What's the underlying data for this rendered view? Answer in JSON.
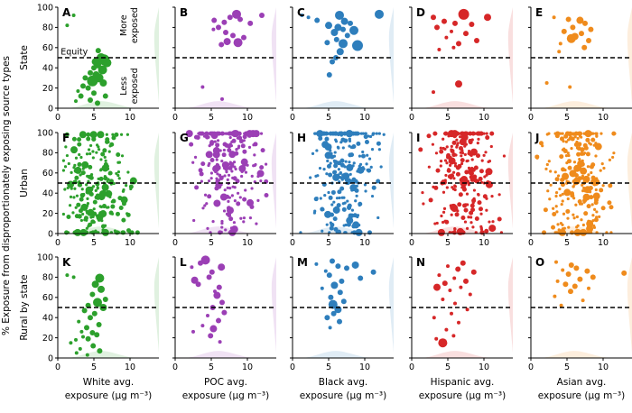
{
  "chart_data": {
    "type": "scatter",
    "ylabel": "% Exposure from disproportionately exposing source types",
    "row_labels": [
      "State",
      "Urban",
      "Rural by state"
    ],
    "column_xlabels": [
      [
        "White avg.",
        "exposure (µg m⁻³)"
      ],
      [
        "POC avg.",
        "exposure (µg m⁻³)"
      ],
      [
        "Black avg.",
        "exposure (µg m⁻³)"
      ],
      [
        "Hispanic avg.",
        "exposure (µg m⁻³)"
      ],
      [
        "Asian avg.",
        "exposure (µg m⁻³)"
      ]
    ],
    "xlim": [
      0,
      14
    ],
    "ylim": [
      0,
      100
    ],
    "xticks": [
      0,
      5,
      10
    ],
    "yticks": [
      0,
      20,
      40,
      60,
      80,
      100
    ],
    "equity_line": 50,
    "annotations": {
      "equity": "Equity",
      "more_exposed": [
        "More",
        "exposed"
      ],
      "less_exposed": [
        "Less",
        "exposed"
      ]
    },
    "colors": [
      "#2ca02c",
      "#9b3fb5",
      "#2e7ebc",
      "#d62728",
      "#ef8b1c"
    ],
    "panels": [
      {
        "letter": "A",
        "row": 0,
        "col": 0,
        "points": [
          [
            2.2,
            92,
            2
          ],
          [
            1.3,
            82,
            2
          ],
          [
            5.6,
            57,
            3
          ],
          [
            6,
            50,
            5
          ],
          [
            6.4,
            48,
            6
          ],
          [
            5.8,
            47,
            4
          ],
          [
            5.2,
            46,
            4
          ],
          [
            6.8,
            45,
            5
          ],
          [
            5.5,
            43,
            4
          ],
          [
            5,
            40,
            3
          ],
          [
            6.2,
            38,
            5
          ],
          [
            4.5,
            35,
            3
          ],
          [
            5.3,
            33,
            4
          ],
          [
            3.8,
            30,
            3
          ],
          [
            5.7,
            30,
            5
          ],
          [
            4.8,
            27,
            6
          ],
          [
            6.3,
            25,
            4
          ],
          [
            3.5,
            22,
            3
          ],
          [
            4.2,
            20,
            3
          ],
          [
            2.8,
            17,
            2
          ],
          [
            5,
            15,
            3
          ],
          [
            3.2,
            12,
            3
          ],
          [
            6.6,
            12,
            3
          ],
          [
            4.5,
            8,
            3
          ],
          [
            2.5,
            7,
            2
          ],
          [
            5.5,
            5,
            3
          ]
        ]
      },
      {
        "letter": "B",
        "row": 0,
        "col": 1,
        "points": [
          [
            8.5,
            93,
            5
          ],
          [
            12,
            92,
            3
          ],
          [
            7.6,
            90,
            3
          ],
          [
            9,
            88,
            3
          ],
          [
            5.4,
            87,
            3
          ],
          [
            6.8,
            85,
            3
          ],
          [
            10.4,
            84,
            3
          ],
          [
            6,
            80,
            3
          ],
          [
            5.3,
            78,
            2
          ],
          [
            7,
            75,
            3
          ],
          [
            8,
            72,
            3
          ],
          [
            9.5,
            70,
            3
          ],
          [
            7.2,
            66,
            4
          ],
          [
            8.7,
            65,
            5
          ],
          [
            6.4,
            63,
            3
          ],
          [
            3.8,
            21,
            2
          ],
          [
            6.5,
            9,
            2
          ]
        ]
      },
      {
        "letter": "C",
        "row": 0,
        "col": 2,
        "points": [
          [
            1.3,
            92,
            2
          ],
          [
            2.2,
            90,
            2
          ],
          [
            3.4,
            87,
            3
          ],
          [
            12,
            93,
            5
          ],
          [
            6.5,
            92,
            5
          ],
          [
            7.2,
            86,
            4
          ],
          [
            8,
            84,
            3
          ],
          [
            5,
            82,
            4
          ],
          [
            6.3,
            80,
            4
          ],
          [
            7,
            78,
            3
          ],
          [
            8.5,
            77,
            5
          ],
          [
            5.8,
            75,
            4
          ],
          [
            7.6,
            72,
            3
          ],
          [
            6.1,
            68,
            3
          ],
          [
            4.8,
            65,
            3
          ],
          [
            7,
            64,
            5
          ],
          [
            9,
            62,
            6
          ],
          [
            6.6,
            56,
            4
          ],
          [
            6,
            50,
            3
          ],
          [
            5.5,
            46,
            3
          ],
          [
            5.1,
            33,
            3
          ]
        ]
      },
      {
        "letter": "D",
        "row": 0,
        "col": 3,
        "points": [
          [
            7.2,
            93,
            6
          ],
          [
            3,
            90,
            3
          ],
          [
            10.5,
            90,
            4
          ],
          [
            4.5,
            86,
            3
          ],
          [
            6,
            84,
            3
          ],
          [
            8.3,
            83,
            3
          ],
          [
            3.5,
            80,
            3
          ],
          [
            5.5,
            76,
            2
          ],
          [
            7.5,
            74,
            3
          ],
          [
            4.8,
            70,
            2
          ],
          [
            9,
            67,
            3
          ],
          [
            6.5,
            64,
            3
          ],
          [
            5.8,
            60,
            2
          ],
          [
            3.8,
            58,
            2
          ],
          [
            6.5,
            24,
            4
          ],
          [
            3,
            16,
            2
          ]
        ]
      },
      {
        "letter": "E",
        "row": 0,
        "col": 4,
        "points": [
          [
            3.2,
            90,
            2
          ],
          [
            5.2,
            88,
            3
          ],
          [
            6.8,
            87,
            4
          ],
          [
            7.5,
            84,
            3
          ],
          [
            5.8,
            80,
            3
          ],
          [
            8.3,
            78,
            3
          ],
          [
            4.6,
            76,
            3
          ],
          [
            7,
            74,
            3
          ],
          [
            6.1,
            71,
            4
          ],
          [
            5.6,
            69,
            5
          ],
          [
            8,
            67,
            3
          ],
          [
            4.1,
            64,
            2
          ],
          [
            7.4,
            60,
            3
          ],
          [
            3.9,
            56,
            2
          ],
          [
            2.2,
            25,
            2
          ],
          [
            5.4,
            21,
            2
          ]
        ]
      },
      {
        "letter": "F",
        "row": 1,
        "col": 0,
        "points": "random:0:260"
      },
      {
        "letter": "G",
        "row": 1,
        "col": 1,
        "points": "random:1:260"
      },
      {
        "letter": "H",
        "row": 1,
        "col": 2,
        "points": "random:2:260"
      },
      {
        "letter": "I",
        "row": 1,
        "col": 3,
        "points": "random:3:260"
      },
      {
        "letter": "J",
        "row": 1,
        "col": 4,
        "points": "random:4:260"
      },
      {
        "letter": "K",
        "row": 2,
        "col": 0,
        "points": [
          [
            1.3,
            82,
            2
          ],
          [
            2.2,
            80,
            2
          ],
          [
            5.8,
            79,
            5
          ],
          [
            5.2,
            73,
            4
          ],
          [
            6,
            68,
            4
          ],
          [
            4.8,
            63,
            3
          ],
          [
            6.6,
            58,
            3
          ],
          [
            5.5,
            55,
            5
          ],
          [
            4.2,
            52,
            3
          ],
          [
            6.3,
            50,
            4
          ],
          [
            3.7,
            47,
            3
          ],
          [
            5.1,
            44,
            3
          ],
          [
            4.5,
            40,
            3
          ],
          [
            2.9,
            36,
            2
          ],
          [
            5.7,
            33,
            3
          ],
          [
            4,
            30,
            3
          ],
          [
            3.3,
            26,
            2
          ],
          [
            4.8,
            25,
            3
          ],
          [
            5.4,
            23,
            3
          ],
          [
            3.5,
            21,
            2
          ],
          [
            4.2,
            19,
            3
          ],
          [
            2.5,
            18,
            2
          ],
          [
            1.8,
            15,
            2
          ],
          [
            4.9,
            12,
            3
          ],
          [
            3.1,
            9,
            2
          ],
          [
            5.8,
            7,
            3
          ],
          [
            2.6,
            5,
            2
          ],
          [
            4.1,
            3,
            2
          ]
        ]
      },
      {
        "letter": "L",
        "row": 2,
        "col": 1,
        "points": [
          [
            4.2,
            97,
            5
          ],
          [
            3.5,
            94,
            3
          ],
          [
            2.3,
            90,
            2
          ],
          [
            6.4,
            90,
            4
          ],
          [
            5.1,
            85,
            3
          ],
          [
            4.7,
            80,
            3
          ],
          [
            2.7,
            77,
            4
          ],
          [
            3.2,
            73,
            3
          ],
          [
            6.1,
            70,
            3
          ],
          [
            5.5,
            66,
            2
          ],
          [
            5.8,
            62,
            4
          ],
          [
            6.5,
            55,
            3
          ],
          [
            5.2,
            50,
            3
          ],
          [
            6.8,
            45,
            3
          ],
          [
            4.5,
            42,
            2
          ],
          [
            6,
            37,
            3
          ],
          [
            3.8,
            32,
            2
          ],
          [
            5.3,
            29,
            4
          ],
          [
            2.5,
            26,
            2
          ],
          [
            4.9,
            22,
            3
          ],
          [
            6.2,
            16,
            2
          ]
        ]
      },
      {
        "letter": "M",
        "row": 2,
        "col": 2,
        "points": [
          [
            5.5,
            96,
            3
          ],
          [
            3.3,
            93,
            2
          ],
          [
            8.7,
            92,
            4
          ],
          [
            6.3,
            91,
            3
          ],
          [
            7.5,
            89,
            3
          ],
          [
            4.6,
            86,
            2
          ],
          [
            11.2,
            85,
            3
          ],
          [
            5.1,
            82,
            3
          ],
          [
            9.4,
            79,
            3
          ],
          [
            6.8,
            76,
            3
          ],
          [
            5.8,
            72,
            4
          ],
          [
            4.1,
            69,
            2
          ],
          [
            6.6,
            65,
            3
          ],
          [
            5.3,
            60,
            3
          ],
          [
            7.1,
            56,
            3
          ],
          [
            5.6,
            53,
            5
          ],
          [
            6.3,
            48,
            4
          ],
          [
            5.7,
            44,
            3
          ],
          [
            4.8,
            40,
            3
          ],
          [
            6.5,
            36,
            3
          ],
          [
            5.2,
            30,
            2
          ]
        ]
      },
      {
        "letter": "N",
        "row": 2,
        "col": 3,
        "points": [
          [
            7.1,
            94,
            3
          ],
          [
            5,
            91,
            2
          ],
          [
            6.4,
            88,
            3
          ],
          [
            8.6,
            85,
            3
          ],
          [
            3.8,
            82,
            2
          ],
          [
            5.9,
            79,
            2
          ],
          [
            7.5,
            76,
            3
          ],
          [
            4.6,
            74,
            3
          ],
          [
            3.5,
            70,
            4
          ],
          [
            6.8,
            70,
            2
          ],
          [
            5.3,
            67,
            2
          ],
          [
            8.1,
            63,
            2
          ],
          [
            4.3,
            58,
            2
          ],
          [
            6,
            54,
            2
          ],
          [
            7.7,
            48,
            2
          ],
          [
            5.5,
            44,
            2
          ],
          [
            3.1,
            40,
            2
          ],
          [
            6.5,
            35,
            2
          ],
          [
            4.8,
            28,
            2
          ],
          [
            5.8,
            22,
            2
          ],
          [
            3.4,
            19,
            2
          ],
          [
            4.3,
            15,
            5
          ]
        ]
      },
      {
        "letter": "O",
        "row": 2,
        "col": 4,
        "points": [
          [
            3.5,
            95,
            2
          ],
          [
            5.6,
            92,
            3
          ],
          [
            6.3,
            89,
            3
          ],
          [
            4.4,
            87,
            2
          ],
          [
            7.8,
            86,
            3
          ],
          [
            12.9,
            84,
            3
          ],
          [
            5.2,
            83,
            3
          ],
          [
            8.6,
            80,
            3
          ],
          [
            6.8,
            78,
            3
          ],
          [
            3.7,
            76,
            2
          ],
          [
            4.8,
            73,
            3
          ],
          [
            6.1,
            71,
            3
          ],
          [
            8,
            69,
            2
          ],
          [
            5.5,
            66,
            3
          ],
          [
            3.3,
            61,
            2
          ],
          [
            7.2,
            57,
            2
          ],
          [
            4.2,
            52,
            2
          ]
        ]
      }
    ]
  }
}
